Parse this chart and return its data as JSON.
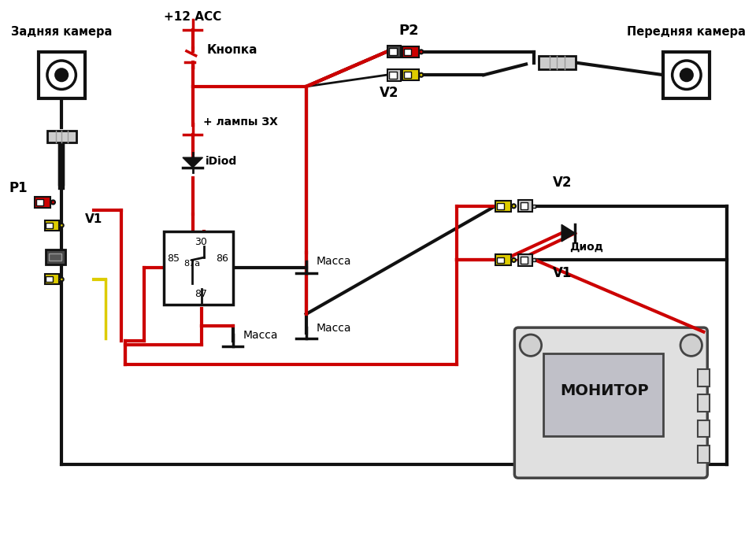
{
  "bg_color": "#ffffff",
  "rear_camera_label": "Задняя камера",
  "front_camera_label": "Передняя камера",
  "monitor_label": "МОНИТОР",
  "p1_label": "P1",
  "p2_label": "P2",
  "v1_left_label": "V1",
  "v2_top_label": "V2",
  "v2_right_label": "V2",
  "v1_right_label": "V1",
  "acc_label": "+12 ACC",
  "button_label": "Кнопка",
  "lamp_label": "+ лампы ЗХ",
  "idiod_label": "iDiod",
  "massa1_label": "Масса",
  "massa2_label": "Масса",
  "massa3_label": "Масса",
  "diod_label": "Диод",
  "red": "#cc0000",
  "black": "#111111",
  "yellow": "#ddcc00",
  "gray": "#999999",
  "lgray": "#cccccc",
  "dgray": "#444444"
}
